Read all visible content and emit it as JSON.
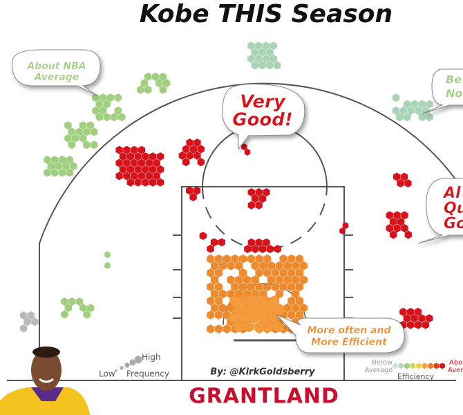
{
  "title": "Kobe THIS Season",
  "callouts": [
    {
      "lines": [
        "About NBA",
        "Average"
      ]
    },
    {
      "lines": [
        "Very",
        "Good!"
      ]
    },
    {
      "lines": [
        "Be",
        "No"
      ]
    },
    {
      "lines": [
        "Al",
        "Qu",
        "Go"
      ]
    },
    {
      "lines": [
        "More often and",
        "More Efficient"
      ]
    }
  ],
  "legend": {
    "frequency": {
      "high": "High",
      "low": "Low",
      "label": "Frequency"
    },
    "efficiency": {
      "below": [
        "Below",
        "Average"
      ],
      "label": "Efficiency",
      "above": [
        "Abo",
        "Aver"
      ]
    }
  },
  "byline": "By: @KirkGoldsberry",
  "brand": "GRANTLAND"
}
